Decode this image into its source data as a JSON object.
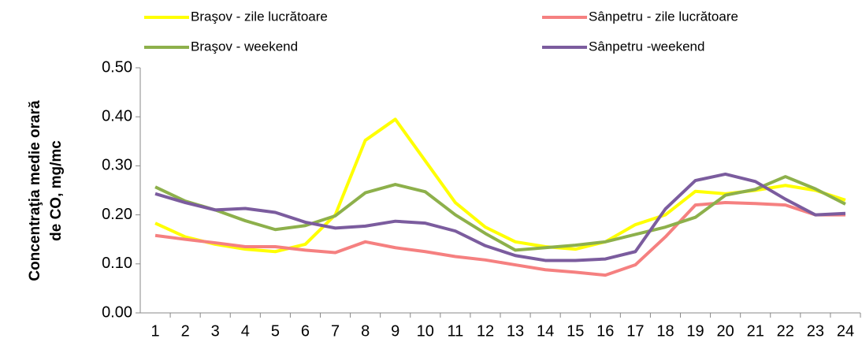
{
  "chart_data": {
    "type": "line",
    "ylabel": [
      "Concentraţia medie orară",
      "de CO, mg/mc"
    ],
    "categories": [
      "1",
      "2",
      "3",
      "4",
      "5",
      "6",
      "7",
      "8",
      "9",
      "10",
      "11",
      "12",
      "13",
      "14",
      "15",
      "16",
      "17",
      "18",
      "19",
      "20",
      "21",
      "22",
      "23",
      "24"
    ],
    "series": [
      {
        "name": "Braşov - zile lucrătoare",
        "color": "#ffff00",
        "values": [
          0.183,
          0.155,
          0.14,
          0.13,
          0.125,
          0.14,
          0.2,
          0.352,
          0.395,
          0.31,
          0.225,
          0.175,
          0.145,
          0.135,
          0.13,
          0.145,
          0.18,
          0.2,
          0.248,
          0.243,
          0.25,
          0.26,
          0.25,
          0.23
        ]
      },
      {
        "name": "Sânpetru - zile lucrătoare",
        "color": "#f58080",
        "values": [
          0.158,
          0.15,
          0.143,
          0.135,
          0.135,
          0.128,
          0.123,
          0.145,
          0.133,
          0.125,
          0.115,
          0.108,
          0.098,
          0.088,
          0.083,
          0.077,
          0.098,
          0.155,
          0.22,
          0.225,
          0.223,
          0.22,
          0.2,
          0.2
        ]
      },
      {
        "name": "Braşov - weekend",
        "color": "#8db04b",
        "values": [
          0.257,
          0.228,
          0.21,
          0.188,
          0.17,
          0.178,
          0.198,
          0.245,
          0.262,
          0.247,
          0.2,
          0.162,
          0.128,
          0.133,
          0.138,
          0.145,
          0.16,
          0.175,
          0.195,
          0.24,
          0.252,
          0.278,
          0.253,
          0.222
        ]
      },
      {
        "name": "Sânpetru -weekend",
        "color": "#7b5c9e",
        "values": [
          0.243,
          0.225,
          0.21,
          0.213,
          0.205,
          0.185,
          0.173,
          0.177,
          0.187,
          0.183,
          0.167,
          0.137,
          0.117,
          0.107,
          0.107,
          0.11,
          0.125,
          0.212,
          0.27,
          0.283,
          0.268,
          0.232,
          0.2,
          0.203
        ]
      }
    ],
    "ylim": [
      0,
      0.5
    ],
    "yticks": [
      {
        "value": 0,
        "label": "0.00"
      },
      {
        "value": 0.1,
        "label": "0.10"
      },
      {
        "value": 0.2,
        "label": "0.20"
      },
      {
        "value": 0.3,
        "label": "0.30"
      },
      {
        "value": 0.4,
        "label": "0.40"
      },
      {
        "value": 0.5,
        "label": "0.50"
      }
    ]
  }
}
